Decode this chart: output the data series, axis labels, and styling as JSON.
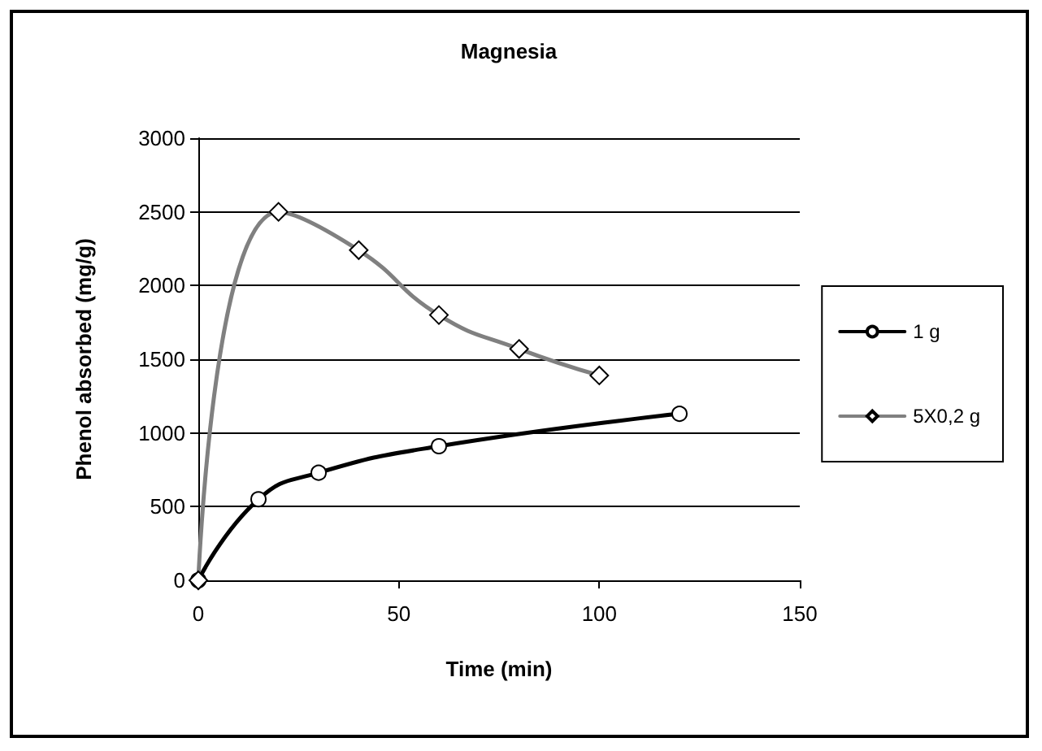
{
  "chart_data": {
    "type": "line",
    "title": "Magnesia",
    "xlabel": "Time (min)",
    "ylabel": "Phenol absorbed (mg/g)",
    "series": [
      {
        "name": "1 g",
        "color": "#000000",
        "marker": "circle",
        "x": [
          0,
          15,
          30,
          60,
          120
        ],
        "values": [
          0,
          550,
          730,
          910,
          1130
        ]
      },
      {
        "name": "5X0,2 g",
        "color": "#808080",
        "marker": "diamond",
        "x": [
          0,
          20,
          40,
          60,
          80,
          100
        ],
        "values": [
          0,
          2500,
          2240,
          1800,
          1570,
          1390
        ]
      }
    ],
    "xlim": [
      0,
      150
    ],
    "xticks": [
      0,
      50,
      100,
      150
    ],
    "ylim": [
      0,
      3000
    ],
    "yticks": [
      0,
      500,
      1000,
      1500,
      2000,
      2500,
      3000
    ],
    "grid": "y",
    "legend": "right",
    "line_style": "solid"
  }
}
